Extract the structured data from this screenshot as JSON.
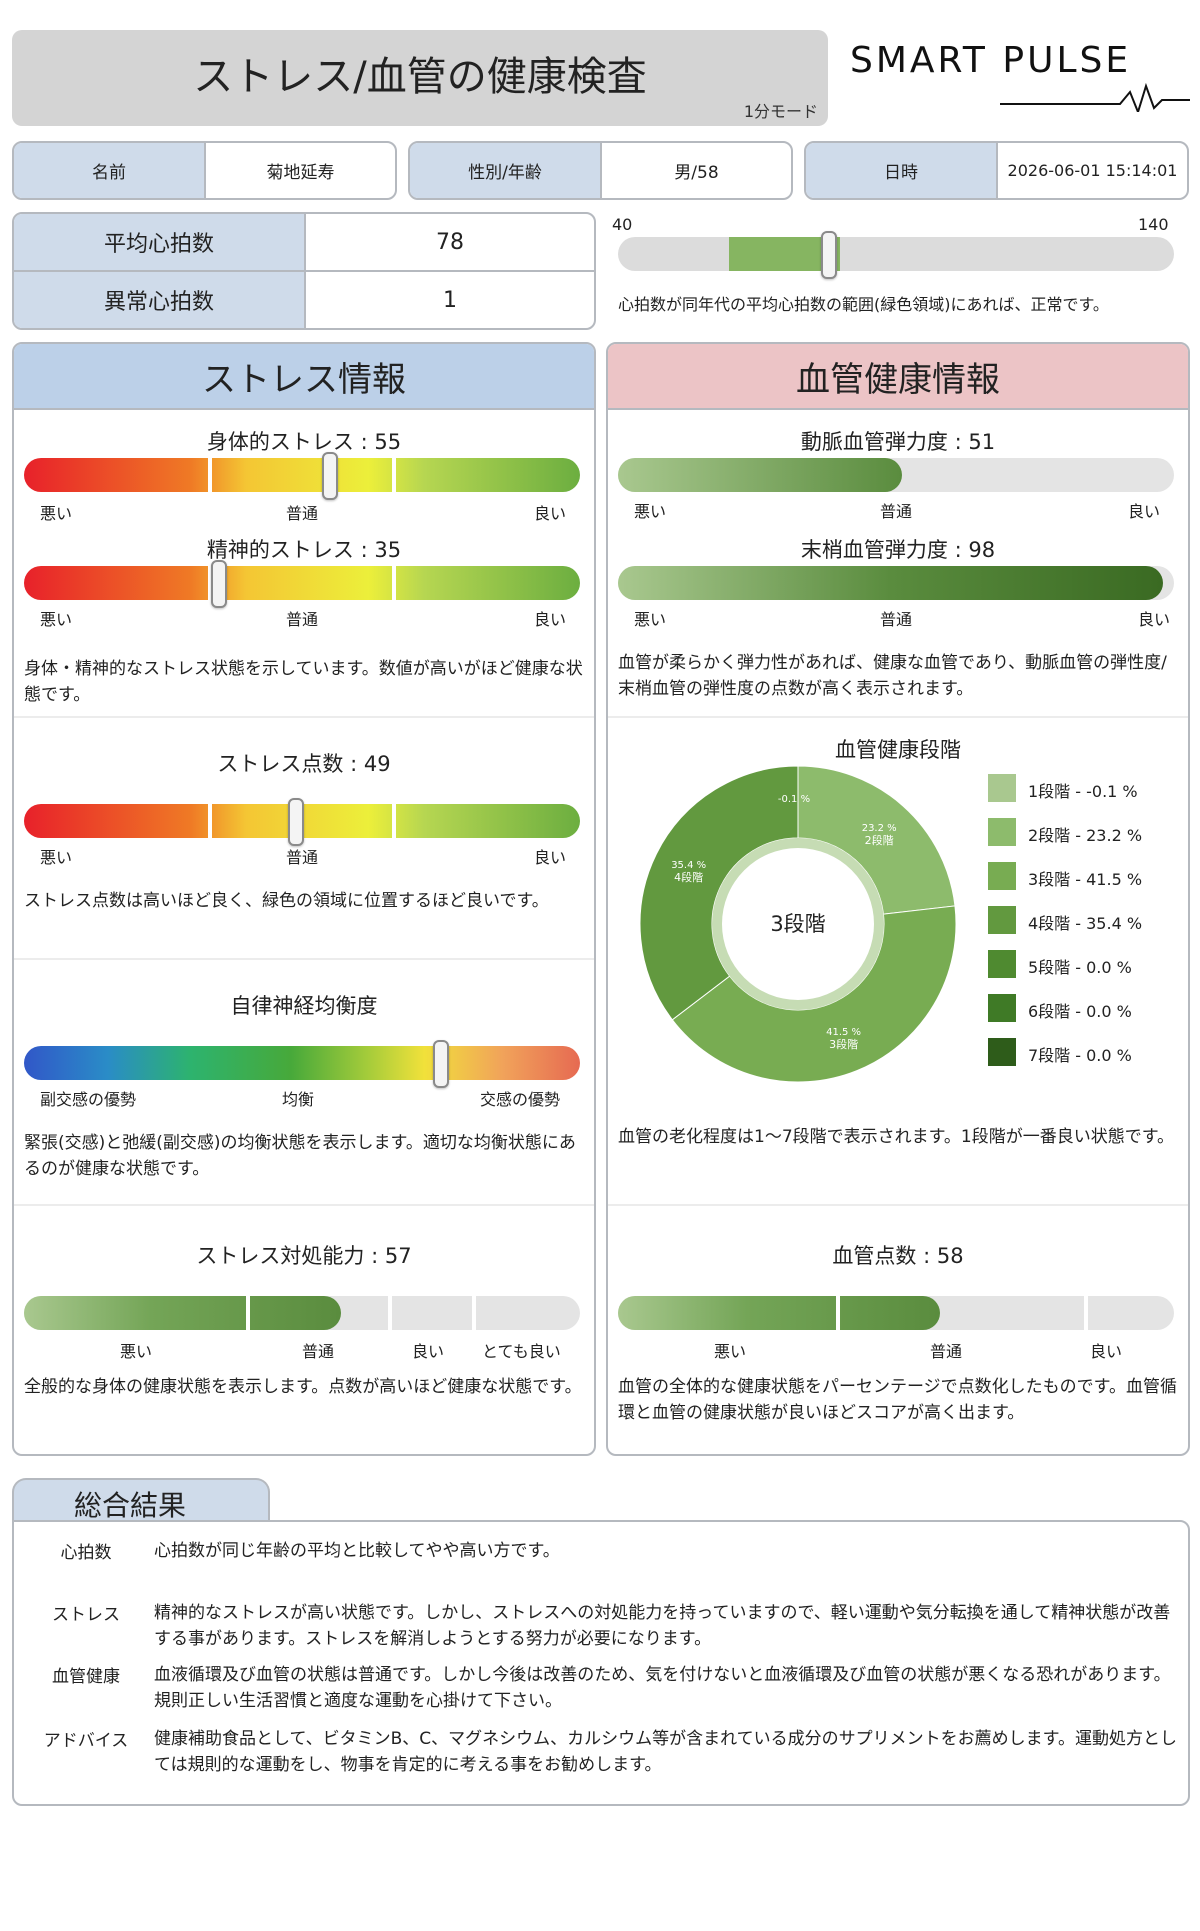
{
  "header": {
    "title": "ストレス/血管の健康検査",
    "mode": "1分モード",
    "brand": "SMARTPULSE",
    "brand_word1": "SMART",
    "brand_word2": "PULSE"
  },
  "info": {
    "name_label": "名前",
    "name_value": "菊地延寿",
    "sexage_label": "性別/年齢",
    "sexage_value": "男/58",
    "date_label": "日時",
    "date_value": "2026-06-01 15:14:01"
  },
  "heart": {
    "avg_label": "平均心拍数",
    "avg_value": "78",
    "abn_label": "異常心拍数",
    "abn_value": "1",
    "range_min": "40",
    "range_max": "140",
    "normal_range": [
      60,
      80
    ],
    "current": 78,
    "note": "心拍数が同年代の平均心拍数の範囲(緑色領域)にあれば、正常です。"
  },
  "stress": {
    "title": "ストレス情報",
    "physical_title": "身体的ストレス : 55",
    "physical_value": 55,
    "mental_title": "精神的ストレス : 35",
    "mental_value": 35,
    "scale_bad": "悪い",
    "scale_normal": "普通",
    "scale_good": "良い",
    "desc1": "身体・精神的なストレス状態を示しています。数値が高いがほど健康な状態です。",
    "score_title": "ストレス点数 : 49",
    "score_value": 49,
    "desc2": "ストレス点数は高いほど良く、緑色の領域に位置するほど良いです。",
    "ans_title": "自律神経均衡度",
    "ans_left": "副交感の優勢",
    "ans_mid": "均衡",
    "ans_right": "交感の優勢",
    "ans_value": 75,
    "desc3": "緊張(交感)と弛緩(副交感)の均衡状態を表示します。適切な均衡状態にあるのが健康な状態です。",
    "coping_title": "ストレス対処能力 : 57",
    "coping_value": 57,
    "coping_bad": "悪い",
    "coping_normal": "普通",
    "coping_good": "良い",
    "coping_verygood": "とても良い",
    "desc4": "全般的な身体の健康状態を表示します。点数が高いほど健康な状態です。"
  },
  "vascular": {
    "title": "血管健康情報",
    "artery_title": "動脈血管弾力度 : 51",
    "artery_value": 51,
    "periph_title": "末梢血管弾力度 : 98",
    "periph_value": 98,
    "scale_bad": "悪い",
    "scale_normal": "普通",
    "scale_good": "良い",
    "desc1": "血管が柔らかく弾力性があれば、健康な血管であり、動脈血管の弾性度/末梢血管の弾性度の点数が高く表示されます。",
    "stage_title": "血管健康段階",
    "stage_center": "3段階",
    "desc2": "血管の老化程度は1〜7段階で表示されます。1段階が一番良い状態です。",
    "score_title": "血管点数 : 58",
    "score_value": 58,
    "desc3": "血管の全体的な健康状態をパーセンテージで点数化したものです。血管循環と血管の健康状態が良いほどスコアが高く出ます。"
  },
  "chart_data": {
    "type": "pie",
    "title": "血管健康段階",
    "center_label": "3段階",
    "categories": [
      "1段階",
      "2段階",
      "3段階",
      "4段階",
      "5段階",
      "6段階",
      "7段階"
    ],
    "values": [
      -0.1,
      23.2,
      41.5,
      35.4,
      0.0,
      0.0,
      0.0
    ],
    "colors": [
      "#a9c88f",
      "#8dbb6c",
      "#78ac52",
      "#62993f",
      "#4f8a30",
      "#3f7a26",
      "#2e5c1a"
    ],
    "legend": [
      "1段階 - -0.1 %",
      "2段階 - 23.2 %",
      "3段階 - 41.5 %",
      "4段階 - 35.4 %",
      "5段階 - 0.0 %",
      "6段階 - 0.0 %",
      "7段階 - 0.0 %"
    ],
    "slice_labels": [
      {
        "pct": "-0.1 %",
        "name": ""
      },
      {
        "pct": "23.2 %",
        "name": "2段階"
      },
      {
        "pct": "41.5 %",
        "name": "3段階"
      },
      {
        "pct": "35.4 %",
        "name": "4段階"
      }
    ],
    "legend_position": "right"
  },
  "summary": {
    "title": "総合結果",
    "rows": [
      {
        "label": "心拍数",
        "text": "心拍数が同じ年齢の平均と比較してやや高い方です。"
      },
      {
        "label": "ストレス",
        "text": "精神的なストレスが高い状態です。しかし、ストレスへの対処能力を持っていますので、軽い運動や気分転換を通して精神状態が改善する事があります。ストレスを解消しようとする努力が必要になります。"
      },
      {
        "label": "血管健康",
        "text": "血液循環及び血管の状態は普通です。しかし今後は改善のため、気を付けないと血液循環及び血管の状態が悪くなる恐れがあります。規則正しい生活習慣と適度な運動を心掛けて下さい。"
      },
      {
        "label": "アドバイス",
        "text": "健康補助食品として、ビタミンB、C、マグネシウム、カルシウム等が含まれている成分のサプリメントをお薦めします。運動処方としては規則的な運動をし、物事を肯定的に考える事をお勧めします。"
      }
    ]
  }
}
